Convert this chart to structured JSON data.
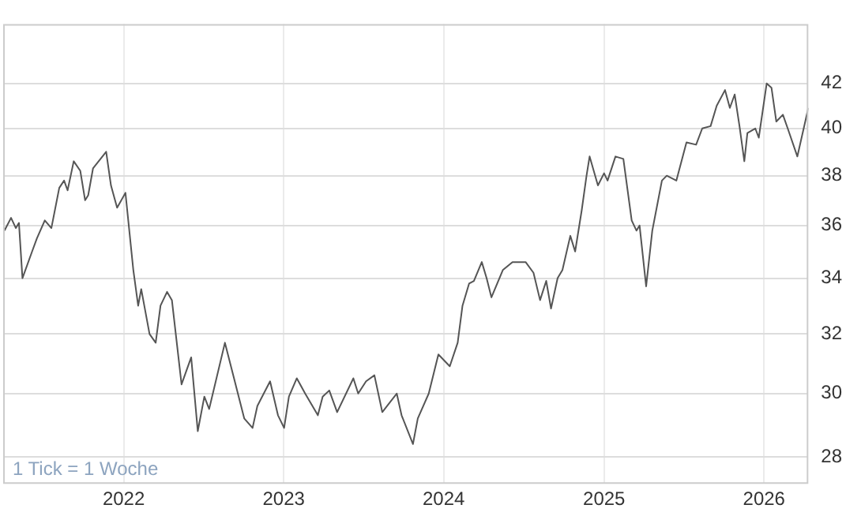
{
  "chart_data": {
    "type": "line",
    "annotations": [
      "1 Tick = 1 Woche"
    ],
    "x": [
      "2021-04-04",
      "2021-04-19",
      "2021-04-30",
      "2021-05-07",
      "2021-05-15",
      "2021-06-06",
      "2021-06-17",
      "2021-07-05",
      "2021-07-20",
      "2021-08-07",
      "2021-08-18",
      "2021-08-26",
      "2021-09-09",
      "2021-09-24",
      "2021-10-05",
      "2021-10-12",
      "2021-10-23",
      "2021-11-22",
      "2021-12-03",
      "2021-12-17",
      "2022-01-05",
      "2022-01-23",
      "2022-02-03",
      "2022-02-10",
      "2022-03-01",
      "2022-03-15",
      "2022-03-26",
      "2022-04-10",
      "2022-04-21",
      "2022-05-13",
      "2022-06-04",
      "2022-06-19",
      "2022-07-04",
      "2022-07-15",
      "2022-08-20",
      "2022-09-08",
      "2022-10-03",
      "2022-10-22",
      "2022-11-02",
      "2022-12-01",
      "2022-12-19",
      "2023-01-02",
      "2023-01-13",
      "2023-01-31",
      "2023-02-19",
      "2023-03-20",
      "2023-03-31",
      "2023-04-15",
      "2023-05-03",
      "2023-06-09",
      "2023-06-20",
      "2023-07-08",
      "2023-07-27",
      "2023-08-14",
      "2023-09-16",
      "2023-09-27",
      "2023-10-23",
      "2023-11-03",
      "2023-11-28",
      "2023-12-20",
      "2024-01-15",
      "2024-02-02",
      "2024-02-13",
      "2024-02-28",
      "2024-03-10",
      "2024-03-28",
      "2024-04-08",
      "2024-04-19",
      "2024-05-15",
      "2024-06-06",
      "2024-07-06",
      "2024-07-24",
      "2024-08-08",
      "2024-08-22",
      "2024-09-02",
      "2024-09-17",
      "2024-09-28",
      "2024-10-16",
      "2024-10-27",
      "2024-11-11",
      "2024-11-22",
      "2024-11-29",
      "2024-12-18",
      "2025-01-01",
      "2025-01-09",
      "2025-01-27",
      "2025-02-14",
      "2025-03-05",
      "2025-03-16",
      "2025-03-23",
      "2025-04-07",
      "2025-04-21",
      "2025-05-13",
      "2025-05-24",
      "2025-06-15",
      "2025-07-08",
      "2025-07-30",
      "2025-08-13",
      "2025-09-01",
      "2025-09-15",
      "2025-10-04",
      "2025-10-15",
      "2025-10-26",
      "2025-11-06",
      "2025-11-17",
      "2025-11-24",
      "2025-12-12",
      "2025-12-20",
      "2026-01-07",
      "2026-01-18",
      "2026-01-29",
      "2026-02-13",
      "2026-02-24",
      "2026-03-18",
      "2026-04-12"
    ],
    "series": [
      {
        "color": "#555555",
        "values": [
          35.8,
          36.3,
          35.9,
          36.1,
          34.0,
          35.0,
          35.5,
          36.2,
          35.9,
          37.5,
          37.8,
          37.4,
          38.6,
          38.2,
          37.0,
          37.2,
          38.3,
          39.0,
          37.6,
          36.7,
          37.3,
          34.3,
          33.0,
          33.6,
          32.0,
          31.7,
          33.0,
          33.5,
          33.2,
          30.3,
          31.2,
          28.8,
          29.9,
          29.5,
          31.7,
          30.6,
          29.2,
          28.9,
          29.6,
          30.4,
          29.3,
          28.9,
          29.9,
          30.5,
          30.0,
          29.3,
          29.9,
          30.1,
          29.4,
          30.5,
          30.0,
          30.4,
          30.6,
          29.4,
          30.0,
          29.3,
          28.4,
          29.2,
          30.0,
          31.3,
          30.9,
          31.7,
          33.0,
          33.8,
          33.9,
          34.6,
          34.0,
          33.3,
          34.3,
          34.6,
          34.6,
          34.2,
          33.2,
          33.9,
          32.9,
          34.0,
          34.3,
          35.6,
          35.0,
          36.6,
          38.0,
          38.8,
          37.6,
          38.1,
          37.8,
          38.8,
          38.7,
          36.2,
          35.8,
          36.0,
          33.7,
          35.8,
          37.8,
          38.0,
          37.8,
          39.4,
          39.3,
          40.0,
          40.1,
          41.0,
          41.7,
          40.9,
          41.5,
          40.1,
          38.6,
          39.8,
          40.0,
          39.6,
          42.0,
          41.8,
          40.3,
          40.6,
          40.0,
          38.8,
          40.9
        ]
      }
    ],
    "xlim": [
      "2021-04-01",
      "2026-04-12"
    ],
    "xticks": [
      "2022",
      "2023",
      "2024",
      "2025",
      "2026"
    ],
    "ylim": [
      27.2,
      44.8
    ],
    "yticks": [
      28,
      30,
      32,
      34,
      36,
      38,
      40,
      42
    ],
    "log": true,
    "grid": true,
    "marker": "none",
    "line_style": "solid"
  }
}
